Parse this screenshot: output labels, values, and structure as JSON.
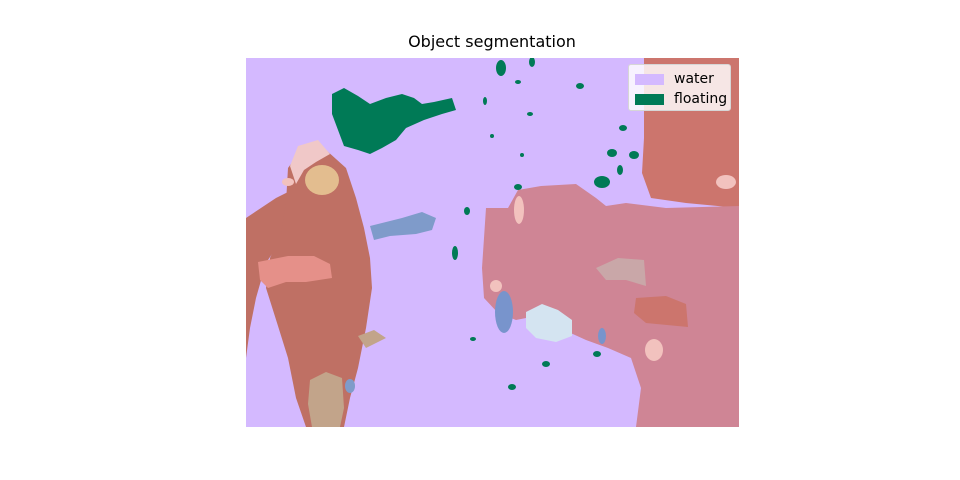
{
  "title": "Object segmentation",
  "legend": {
    "items": [
      {
        "label": "water",
        "color": "#d4b9ff"
      },
      {
        "label": "floating",
        "color": "#007a56"
      }
    ]
  },
  "colors": {
    "water": "#d4b9ff",
    "floating": "#007a56",
    "person": "#bf7064",
    "boat": "#cf8595",
    "rock": "#cc756d",
    "skin": "#e59089",
    "head": "#e3bd8f",
    "hair": "#f0c8c8",
    "arm": "#7f9bca",
    "leg": "#c2a48a",
    "foam": "#d4e4f1",
    "cargo": "#c9a7a8",
    "pale": "#f2c2be",
    "marker": "#7894cc"
  }
}
